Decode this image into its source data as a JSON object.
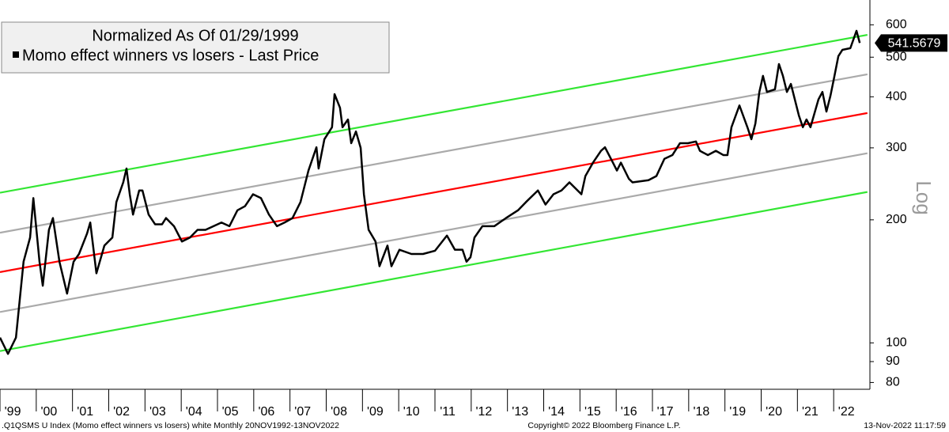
{
  "chart_data": {
    "type": "line",
    "legend_title": "Normalized As Of 01/29/1999",
    "y_axis_label": "Log",
    "log_scale": true,
    "footer_left": ".Q1QSMS U Index (Momo effect winners vs losers) white  Monthly 20NOV1992-13NOV2022",
    "footer_center": "Copyright© 2022 Bloomberg Finance L.P.",
    "footer_right": "13-Nov-2022 11:17:59",
    "legend_position": "upper left",
    "xlim": [
      1999,
      2023
    ],
    "ylim": [
      77,
      690
    ],
    "yticks": [
      80,
      90,
      100,
      200,
      300,
      400,
      500,
      600
    ],
    "xticks": [
      {
        "value": 1999,
        "label": "'99"
      },
      {
        "value": 2000,
        "label": "'00"
      },
      {
        "value": 2001,
        "label": "'01"
      },
      {
        "value": 2002,
        "label": "'02"
      },
      {
        "value": 2003,
        "label": "'03"
      },
      {
        "value": 2004,
        "label": "'04"
      },
      {
        "value": 2005,
        "label": "'05"
      },
      {
        "value": 2006,
        "label": "'06"
      },
      {
        "value": 2007,
        "label": "'07"
      },
      {
        "value": 2008,
        "label": "'08"
      },
      {
        "value": 2009,
        "label": "'09"
      },
      {
        "value": 2010,
        "label": "'10"
      },
      {
        "value": 2011,
        "label": "'11"
      },
      {
        "value": 2012,
        "label": "'12"
      },
      {
        "value": 2013,
        "label": "'13"
      },
      {
        "value": 2014,
        "label": "'14"
      },
      {
        "value": 2015,
        "label": "'15"
      },
      {
        "value": 2016,
        "label": "'16"
      },
      {
        "value": 2017,
        "label": "'17"
      },
      {
        "value": 2018,
        "label": "'18"
      },
      {
        "value": 2019,
        "label": "'19"
      },
      {
        "value": 2020,
        "label": "'20"
      },
      {
        "value": 2021,
        "label": "'21"
      },
      {
        "value": 2022,
        "label": "'22"
      }
    ],
    "x": [
      1999.0,
      1999.22,
      1999.44,
      1999.65,
      1999.83,
      1999.92,
      2000.09,
      2000.18,
      2000.35,
      2000.46,
      2000.64,
      2000.85,
      2001.03,
      2001.18,
      2001.4,
      2001.49,
      2001.66,
      2001.88,
      2002.1,
      2002.21,
      2002.4,
      2002.49,
      2002.58,
      2002.67,
      2002.84,
      2002.93,
      2003.1,
      2003.28,
      2003.47,
      2003.58,
      2003.8,
      2004.02,
      2004.24,
      2004.45,
      2004.67,
      2004.89,
      2005.11,
      2005.33,
      2005.55,
      2005.76,
      2005.98,
      2006.2,
      2006.42,
      2006.64,
      2006.85,
      2007.07,
      2007.29,
      2007.51,
      2007.73,
      2007.79,
      2007.95,
      2008.16,
      2008.23,
      2008.38,
      2008.45,
      2008.6,
      2008.69,
      2008.82,
      2008.95,
      2009.04,
      2009.17,
      2009.36,
      2009.47,
      2009.69,
      2009.8,
      2010.02,
      2010.35,
      2010.67,
      2011.0,
      2011.33,
      2011.55,
      2011.76,
      2011.87,
      2011.98,
      2012.09,
      2012.31,
      2012.64,
      2012.96,
      2013.29,
      2013.51,
      2013.84,
      2014.05,
      2014.27,
      2014.49,
      2014.71,
      2015.04,
      2015.15,
      2015.36,
      2015.58,
      2015.69,
      2015.91,
      2016.02,
      2016.13,
      2016.35,
      2016.45,
      2016.89,
      2017.11,
      2017.33,
      2017.55,
      2017.76,
      2017.98,
      2018.2,
      2018.31,
      2018.53,
      2018.75,
      2018.96,
      2019.07,
      2019.18,
      2019.4,
      2019.62,
      2019.73,
      2019.84,
      2019.95,
      2020.05,
      2020.16,
      2020.38,
      2020.49,
      2020.6,
      2020.71,
      2020.82,
      2021.04,
      2021.15,
      2021.25,
      2021.36,
      2021.58,
      2021.69,
      2021.8,
      2021.91,
      2022.0,
      2022.13,
      2022.24,
      2022.46,
      2022.63,
      2022.72
    ],
    "series": [
      {
        "name": "Momo effect winners vs losers - Last Price",
        "color": "#000000",
        "values": [
          103,
          94,
          103,
          158,
          181,
          226,
          158,
          138,
          189,
          202,
          158,
          132,
          158,
          165,
          185,
          197,
          148,
          173,
          181,
          221,
          247,
          267,
          231,
          206,
          236,
          236,
          206,
          195,
          195,
          202,
          193,
          177,
          181,
          189,
          189,
          193,
          197,
          193,
          211,
          216,
          231,
          226,
          206,
          193,
          197,
          202,
          221,
          264,
          301,
          267,
          315,
          337,
          406,
          376,
          337,
          352,
          308,
          329,
          300,
          231,
          189,
          177,
          154,
          173,
          154,
          169,
          165,
          165,
          168,
          183,
          169,
          169,
          158,
          162,
          181,
          193,
          193,
          202,
          211,
          221,
          236,
          218,
          231,
          236,
          247,
          231,
          256,
          276,
          295,
          301,
          276,
          264,
          276,
          252,
          247,
          250,
          256,
          282,
          288,
          308,
          308,
          311,
          295,
          288,
          295,
          288,
          288,
          337,
          381,
          337,
          315,
          344,
          411,
          450,
          411,
          417,
          481,
          450,
          411,
          430,
          360,
          337,
          352,
          337,
          394,
          411,
          368,
          402,
          440,
          503,
          521,
          526,
          580,
          541.5679
        ]
      }
    ],
    "channel_x": [
      1999,
      2022.93
    ],
    "channels": [
      {
        "color": "#33e633",
        "values": [
          233,
          567
        ]
      },
      {
        "color": "#aaaaaa",
        "values": [
          186,
          454
        ]
      },
      {
        "color": "#ff0000",
        "values": [
          149,
          365
        ]
      },
      {
        "color": "#aaaaaa",
        "values": [
          119,
          291
        ]
      },
      {
        "color": "#33e633",
        "values": [
          95.5,
          234
        ]
      }
    ]
  }
}
